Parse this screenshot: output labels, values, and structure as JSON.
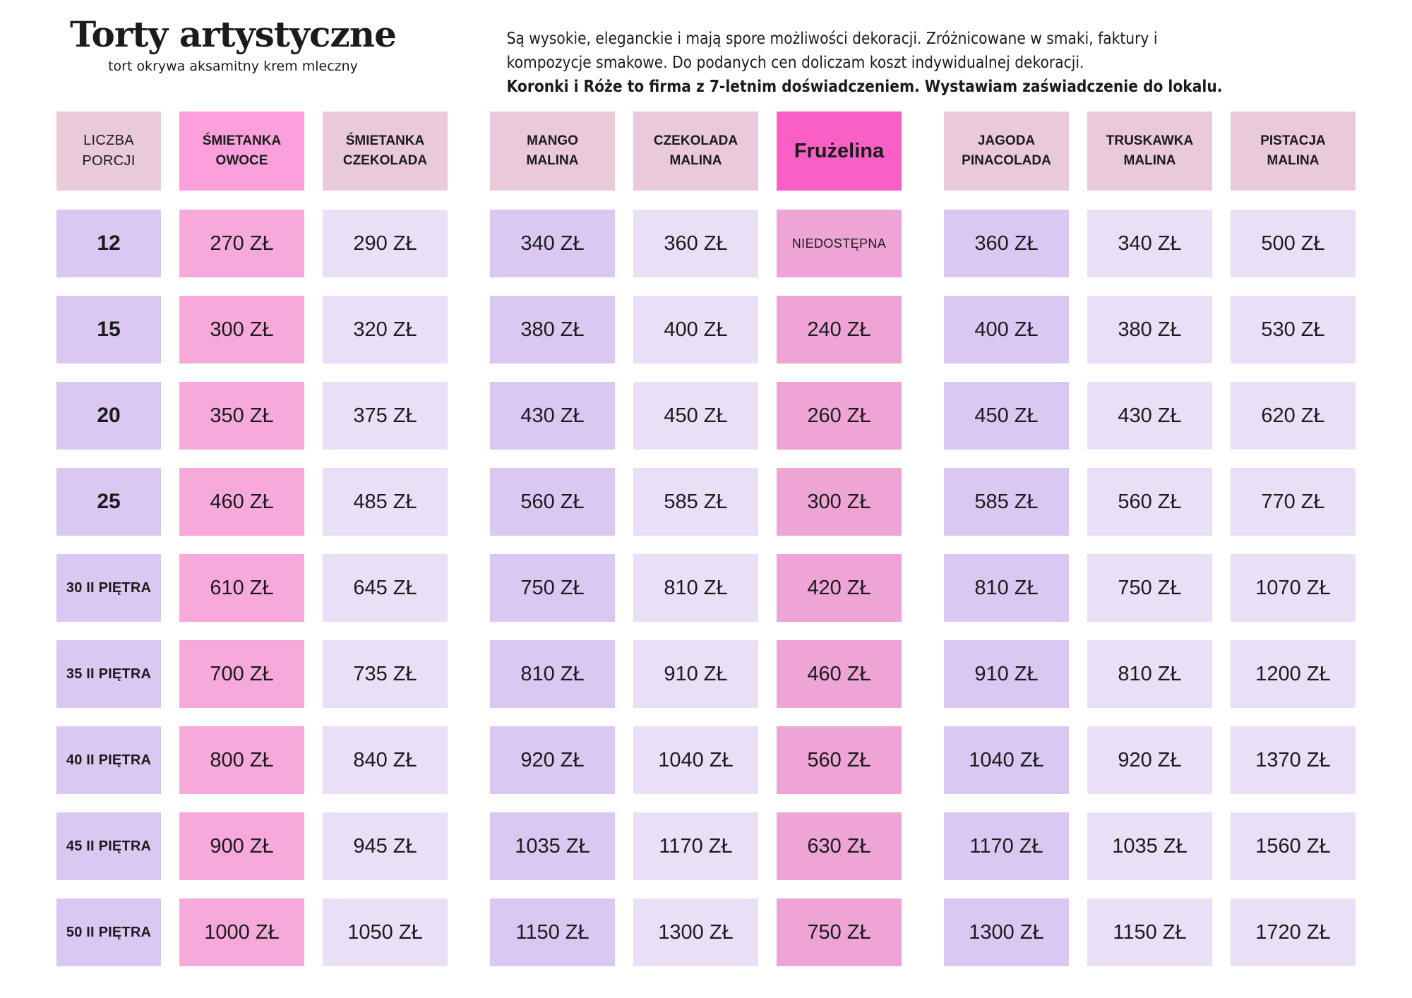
{
  "header": {
    "title": "Torty artystyczne",
    "subtitle": "tort okrywa aksamitny krem mleczny",
    "description_lines": [
      "Są wysokie, eleganckie i mają spore możliwości dekoracji.  Zróżnicowane w smaki, faktury i",
      "kompozycje smakowe. Do podanych cen doliczam koszt indywidualnej dekoracji.",
      "Koronki i Róże to firma z 7-letnim doświadczeniem. Wystawiam zaświadczenie do lokalu."
    ]
  },
  "colors": {
    "header_pink": "#eac9db",
    "header_bright_pink": "#fba0dc",
    "header_magenta": "#f95fc5",
    "cell_purple": "#dac8f3",
    "cell_lavender": "#e9e0f8",
    "cell_pink": "#f8a9db",
    "cell_rose": "#eea4d4",
    "text_dark": "#1b1b1b"
  },
  "table": {
    "columns": [
      {
        "id": "liczba-porcji",
        "label": "LICZBA PORCJI",
        "header_variant": "pink",
        "header_weight": "regular",
        "cell_variant": "purple"
      },
      {
        "id": "smietanka-owoce",
        "label": "ŚMIETANKA OWOCE",
        "header_variant": "bright-pink",
        "header_weight": "bold",
        "cell_variant": "pink"
      },
      {
        "id": "smietanka-czekolada",
        "label": "ŚMIETANKA CZEKOLADA",
        "header_variant": "pink",
        "header_weight": "bold",
        "cell_variant": "lavender"
      },
      {
        "id": "mango-malina",
        "label": "MANGO MALINA",
        "header_variant": "pink",
        "header_weight": "bold",
        "cell_variant": "purple",
        "group_start": true
      },
      {
        "id": "czekolada-malina",
        "label": "CZEKOLADA MALINA",
        "header_variant": "pink",
        "header_weight": "bold",
        "cell_variant": "lavender"
      },
      {
        "id": "fruzelina",
        "label": "Frużelina",
        "header_variant": "magenta",
        "header_weight": "bold",
        "cell_variant": "rose"
      },
      {
        "id": "jagoda-pinacolada",
        "label": "JAGODA PINACOLADA",
        "header_variant": "pink",
        "header_weight": "bold",
        "cell_variant": "purple",
        "group_start": true
      },
      {
        "id": "truskawka-malina",
        "label": "TRUSKAWKA MALINA",
        "header_variant": "pink",
        "header_weight": "bold",
        "cell_variant": "lavender"
      },
      {
        "id": "pistacja-malina",
        "label": "PISTACJA MALINA",
        "header_variant": "pink",
        "header_weight": "bold",
        "cell_variant": "lavender"
      }
    ],
    "rows": [
      {
        "label": "12",
        "values": [
          "270 ZŁ",
          "290 ZŁ",
          "340 ZŁ",
          "360 ZŁ",
          "NIEDOSTĘPNA",
          "360 ZŁ",
          "340 ZŁ",
          "500 ZŁ"
        ]
      },
      {
        "label": "15",
        "values": [
          "300 ZŁ",
          "320 ZŁ",
          "380 ZŁ",
          "400 ZŁ",
          "240 ZŁ",
          "400 ZŁ",
          "380 ZŁ",
          "530 ZŁ"
        ]
      },
      {
        "label": "20",
        "values": [
          "350 ZŁ",
          "375 ZŁ",
          "430 ZŁ",
          "450 ZŁ",
          "260 ZŁ",
          "450 ZŁ",
          "430 ZŁ",
          "620 ZŁ"
        ]
      },
      {
        "label": "25",
        "values": [
          "460 ZŁ",
          "485 ZŁ",
          "560 ZŁ",
          "585 ZŁ",
          "300 ZŁ",
          "585 ZŁ",
          "560 ZŁ",
          "770 ZŁ"
        ]
      },
      {
        "label": "30 II PIĘTRA",
        "values": [
          "610 ZŁ",
          "645 ZŁ",
          "750 ZŁ",
          "810 ZŁ",
          "420 ZŁ",
          "810 ZŁ",
          "750 ZŁ",
          "1070 ZŁ"
        ]
      },
      {
        "label": "35 II PIĘTRA",
        "values": [
          "700 ZŁ",
          "735 ZŁ",
          "810 ZŁ",
          "910 ZŁ",
          "460 ZŁ",
          "910 ZŁ",
          "810 ZŁ",
          "1200 ZŁ"
        ]
      },
      {
        "label": "40 II PIĘTRA",
        "values": [
          "800 ZŁ",
          "840 ZŁ",
          "920 ZŁ",
          "1040 ZŁ",
          "560 ZŁ",
          "1040 ZŁ",
          "920 ZŁ",
          "1370 ZŁ"
        ]
      },
      {
        "label": "45  II PIĘTRA",
        "values": [
          "900 ZŁ",
          "945 ZŁ",
          "1035 ZŁ",
          "1170 ZŁ",
          "630 ZŁ",
          "1170 ZŁ",
          "1035 ZŁ",
          "1560 ZŁ"
        ]
      },
      {
        "label": "50 II PIĘTRA",
        "values": [
          "1000 ZŁ",
          "1050 ZŁ",
          "1150 ZŁ",
          "1300 ZŁ",
          "750 ZŁ",
          "1300 ZŁ",
          "1150 ZŁ",
          "1720 ZŁ"
        ]
      }
    ]
  }
}
